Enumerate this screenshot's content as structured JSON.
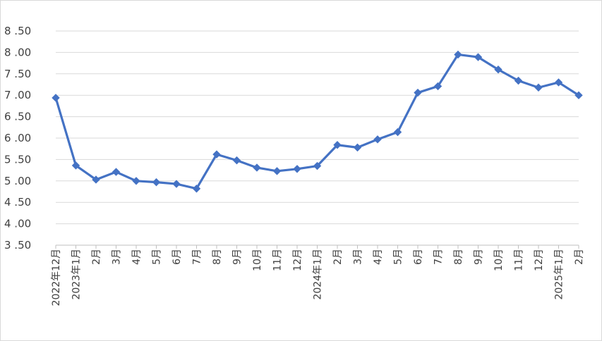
{
  "chart_data": {
    "type": "line",
    "title": "",
    "xlabel": "",
    "ylabel": "",
    "ylim": [
      3.5,
      8.5
    ],
    "y_ticks": [
      "3.50",
      "4.00",
      "4.50",
      "5.00",
      "5.50",
      "6.00",
      "6.50",
      "7.00",
      "7.50",
      "8.00",
      "8.50"
    ],
    "grid": "horizontal",
    "legend": "none",
    "line_color": "#4472C4",
    "marker": "diamond",
    "categories": [
      "2022年12月",
      "2023年1月",
      "2月",
      "3月",
      "4月",
      "5月",
      "6月",
      "7月",
      "8月",
      "9月",
      "10月",
      "11月",
      "12月",
      "2024年1月",
      "2月",
      "3月",
      "4月",
      "5月",
      "6月",
      "7月",
      "8月",
      "9月",
      "10月",
      "11月",
      "12月",
      "2025年1月",
      "2月"
    ],
    "series": [
      {
        "values": [
          6.94,
          5.36,
          5.03,
          5.21,
          5.0,
          4.97,
          4.93,
          4.82,
          5.62,
          5.48,
          5.31,
          5.23,
          5.28,
          5.35,
          5.84,
          5.78,
          5.97,
          6.14,
          7.06,
          7.21,
          7.95,
          7.89,
          7.6,
          7.34,
          7.18,
          7.3,
          7.0
        ]
      }
    ]
  }
}
